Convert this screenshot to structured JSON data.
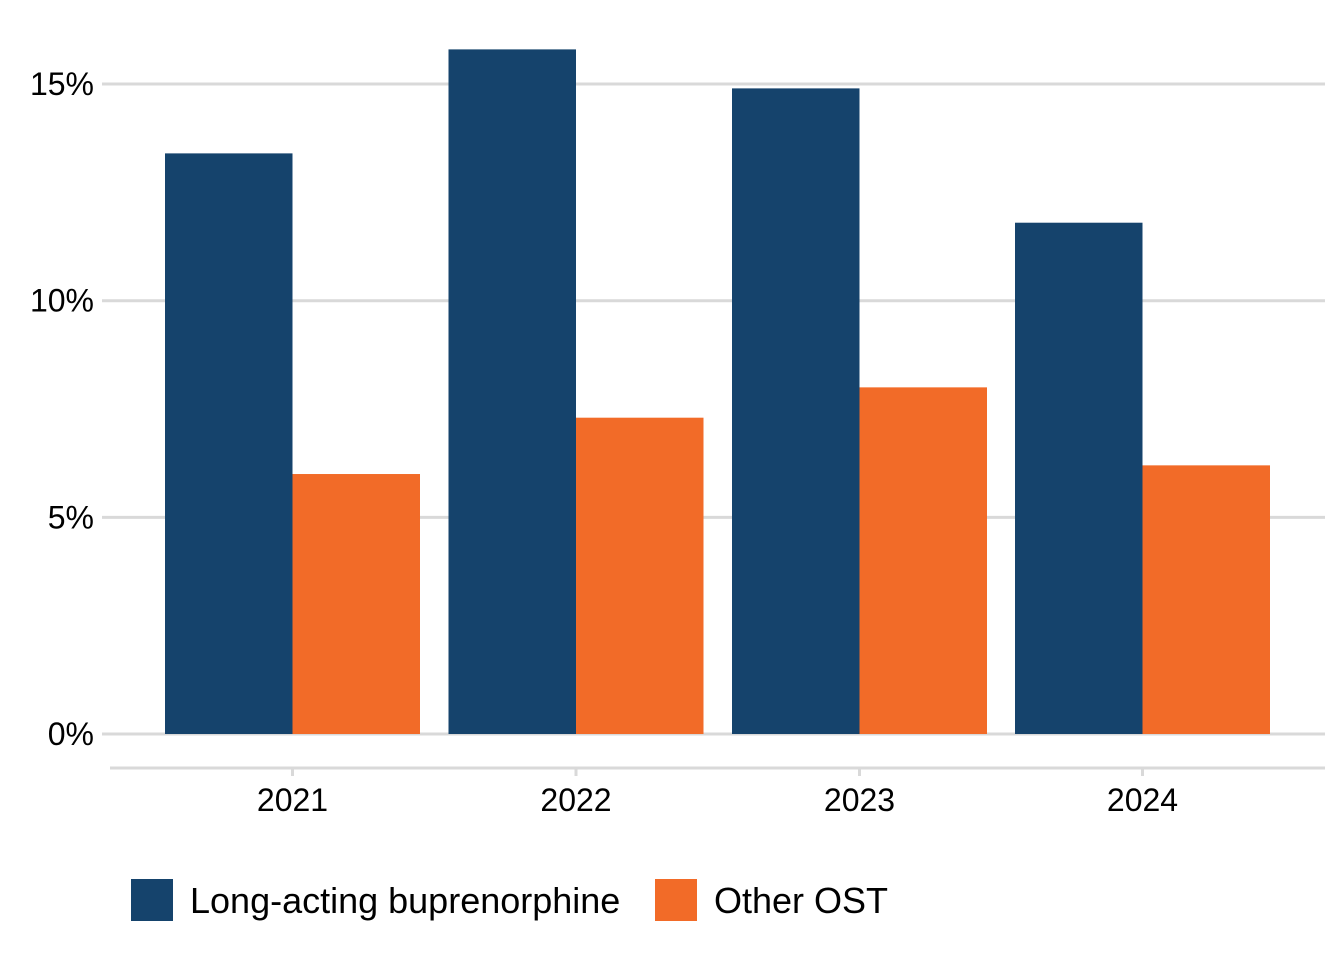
{
  "chart_data": {
    "type": "bar",
    "title": "",
    "xlabel": "",
    "ylabel": "",
    "categories": [
      "2021",
      "2022",
      "2023",
      "2024"
    ],
    "series": [
      {
        "name": "Long-acting buprenorphine",
        "color": "#15436c",
        "values": [
          13.4,
          15.8,
          14.9,
          11.8
        ]
      },
      {
        "name": "Other OST",
        "color": "#f26b28",
        "values": [
          6.0,
          7.3,
          8.0,
          6.2
        ]
      }
    ],
    "ylim": [
      0,
      16
    ],
    "yticks": [
      {
        "value": 0,
        "label": "0%"
      },
      {
        "value": 5,
        "label": "5%"
      },
      {
        "value": 10,
        "label": "10%"
      },
      {
        "value": 15,
        "label": "15%"
      }
    ],
    "grid": "horizontal",
    "legend_position": "bottom-left"
  }
}
